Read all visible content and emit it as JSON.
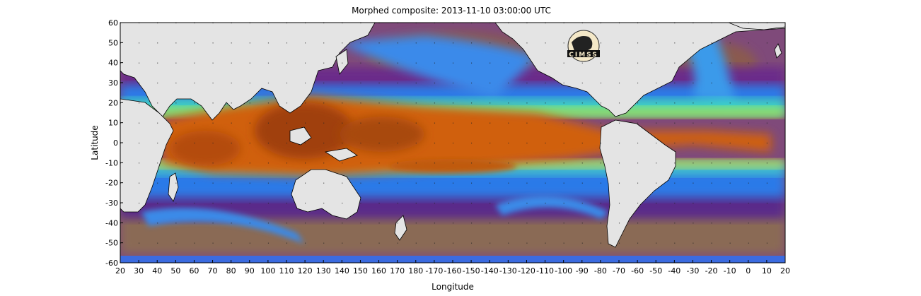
{
  "title": "Morphed composite: 2013-11-10 03:00:00 UTC",
  "xlabel": "Longitude",
  "ylabel": "Latitude",
  "logo_text": "CIMSS",
  "x_ticks": [
    "20",
    "30",
    "40",
    "50",
    "60",
    "70",
    "80",
    "90",
    "100",
    "110",
    "120",
    "130",
    "140",
    "150",
    "160",
    "170",
    "180",
    "-170",
    "-160",
    "-150",
    "-140",
    "-130",
    "-120",
    "-110",
    "-100",
    "-90",
    "-80",
    "-70",
    "-60",
    "-50",
    "-40",
    "-30",
    "-20",
    "-10",
    "0",
    "10",
    "20"
  ],
  "y_ticks": [
    "60",
    "50",
    "40",
    "30",
    "20",
    "10",
    "0",
    "-10",
    "-20",
    "-30",
    "-40",
    "-50",
    "-60"
  ],
  "colors": {
    "land": "#e4e4e4",
    "high_moisture": "#c85a0a",
    "moderate_moisture": "#38a8ff",
    "low_moisture": "#7a2a8c",
    "dry": "#8a6a55"
  },
  "chart_data": {
    "type": "heatmap",
    "title": "Morphed composite: 2013-11-10 03:00:00 UTC",
    "xlabel": "Longitude",
    "ylabel": "Latitude",
    "xlim": [
      20,
      380
    ],
    "ylim": [
      -60,
      60
    ],
    "grid": true
  }
}
